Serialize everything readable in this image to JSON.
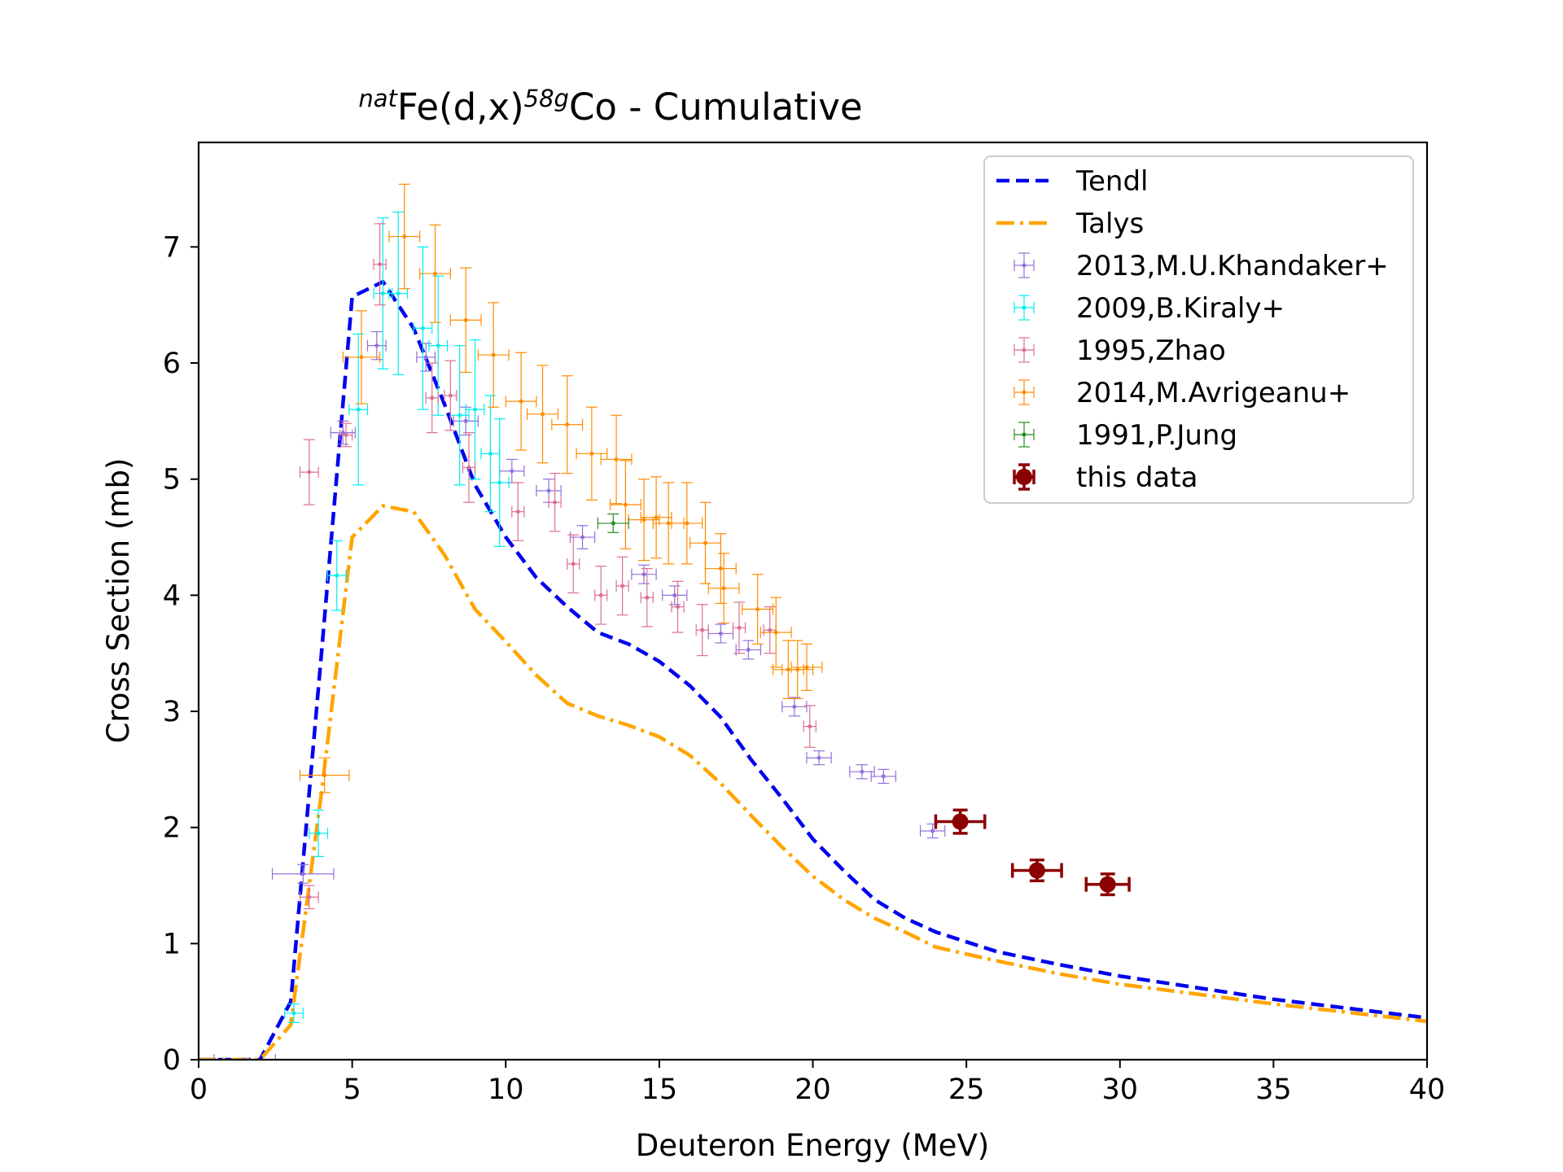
{
  "chart_data": {
    "type": "scatter",
    "title": {
      "prefix": "nat",
      "main1": "Fe(d,x)",
      "sup2": "58g",
      "main2": "Co - Cumulative"
    },
    "xlabel": "Deuteron Energy (MeV)",
    "ylabel": "Cross Section (mb)",
    "xlim": [
      0,
      40
    ],
    "ylim": [
      0,
      7.9
    ],
    "xticks": [
      "0",
      "5",
      "10",
      "15",
      "20",
      "25",
      "30",
      "35",
      "40"
    ],
    "yticks": [
      "0",
      "1",
      "2",
      "3",
      "4",
      "5",
      "6",
      "7"
    ],
    "legend_position": "top-right",
    "lines": [
      {
        "name": "Tendl",
        "color": "#0000ee",
        "style": "dashed",
        "x": [
          0,
          2,
          3,
          4,
          5,
          6,
          7,
          8,
          9,
          10,
          11,
          12,
          13,
          14,
          15,
          16,
          17,
          18,
          19,
          20,
          21,
          22,
          23,
          24,
          26,
          28,
          30,
          35,
          40
        ],
        "y": [
          0,
          0,
          0.5,
          3.5,
          6.57,
          6.7,
          6.3,
          5.65,
          4.95,
          4.5,
          4.15,
          3.9,
          3.68,
          3.58,
          3.43,
          3.22,
          2.95,
          2.58,
          2.25,
          1.9,
          1.63,
          1.38,
          1.22,
          1.1,
          0.93,
          0.82,
          0.72,
          0.52,
          0.36
        ]
      },
      {
        "name": "Talys",
        "color": "#ffa500",
        "style": "dashdot",
        "x": [
          0,
          2,
          3,
          4,
          5,
          6,
          7,
          8,
          9,
          10,
          11,
          12,
          13,
          14,
          15,
          16,
          17,
          18,
          19,
          20,
          21,
          22,
          23,
          24,
          26,
          28,
          30,
          35,
          40
        ],
        "y": [
          0,
          0,
          0.3,
          2.3,
          4.5,
          4.77,
          4.72,
          4.35,
          3.88,
          3.6,
          3.31,
          3.07,
          2.96,
          2.88,
          2.78,
          2.62,
          2.38,
          2.1,
          1.83,
          1.58,
          1.38,
          1.22,
          1.1,
          0.97,
          0.85,
          0.74,
          0.65,
          0.48,
          0.33
        ]
      }
    ],
    "series": [
      {
        "name": "2013,M.U.Khandaker+",
        "color": "#9370db",
        "points": [
          [
            1.5,
            0,
            1.0,
            0.0
          ],
          [
            3.4,
            1.6,
            1.0,
            0.08
          ],
          [
            4.7,
            5.4,
            0.4,
            0.1
          ],
          [
            5.8,
            6.15,
            0.3,
            0.12
          ],
          [
            7.4,
            6.05,
            0.3,
            0.12
          ],
          [
            8.7,
            5.5,
            0.4,
            0.12
          ],
          [
            10.2,
            5.07,
            0.4,
            0.1
          ],
          [
            11.4,
            4.9,
            0.4,
            0.1
          ],
          [
            12.5,
            4.5,
            0.4,
            0.1
          ],
          [
            14.5,
            4.18,
            0.4,
            0.08
          ],
          [
            15.5,
            4.0,
            0.4,
            0.08
          ],
          [
            17.0,
            3.67,
            0.4,
            0.08
          ],
          [
            17.9,
            3.53,
            0.4,
            0.08
          ],
          [
            19.4,
            3.04,
            0.4,
            0.08
          ],
          [
            20.2,
            2.6,
            0.4,
            0.06
          ],
          [
            21.6,
            2.48,
            0.4,
            0.06
          ],
          [
            22.3,
            2.44,
            0.4,
            0.06
          ],
          [
            23.9,
            1.97,
            0.4,
            0.06
          ]
        ]
      },
      {
        "name": "2009,B.Kiraly+",
        "color": "#00eeee",
        "points": [
          [
            3.1,
            0.4,
            0.3,
            0.08
          ],
          [
            3.9,
            1.95,
            0.3,
            0.2
          ],
          [
            4.5,
            4.17,
            0.3,
            0.3
          ],
          [
            5.2,
            5.6,
            0.3,
            0.65
          ],
          [
            6.0,
            6.6,
            0.3,
            0.65
          ],
          [
            6.5,
            6.6,
            0.3,
            0.7
          ],
          [
            7.3,
            6.3,
            0.3,
            0.7
          ],
          [
            7.8,
            6.15,
            0.3,
            0.6
          ],
          [
            8.5,
            5.55,
            0.3,
            0.6
          ],
          [
            9.0,
            5.6,
            0.3,
            0.6
          ],
          [
            9.5,
            5.22,
            0.3,
            0.5
          ],
          [
            9.8,
            4.97,
            0.3,
            0.55
          ]
        ]
      },
      {
        "name": "1995,Zhao",
        "color": "#db7093",
        "points": [
          [
            3.6,
            5.06,
            0.3,
            0.28
          ],
          [
            3.6,
            1.4,
            0.3,
            0.1
          ],
          [
            4.8,
            5.38,
            0.2,
            0.1
          ],
          [
            5.9,
            6.85,
            0.2,
            0.35
          ],
          [
            7.6,
            5.7,
            0.2,
            0.3
          ],
          [
            8.2,
            5.72,
            0.2,
            0.3
          ],
          [
            8.8,
            5.1,
            0.2,
            0.3
          ],
          [
            10.4,
            4.72,
            0.2,
            0.25
          ],
          [
            11.6,
            4.8,
            0.2,
            0.25
          ],
          [
            12.2,
            4.27,
            0.2,
            0.25
          ],
          [
            13.1,
            4.0,
            0.2,
            0.25
          ],
          [
            13.8,
            4.08,
            0.2,
            0.25
          ],
          [
            14.6,
            3.98,
            0.2,
            0.25
          ],
          [
            15.6,
            3.9,
            0.2,
            0.22
          ],
          [
            16.4,
            3.7,
            0.2,
            0.22
          ],
          [
            17.6,
            3.72,
            0.2,
            0.22
          ],
          [
            18.6,
            3.7,
            0.2,
            0.2
          ],
          [
            19.9,
            2.87,
            0.2,
            0.18
          ]
        ]
      },
      {
        "name": "2014,M.Avrigeanu+",
        "color": "#ff8c00",
        "points": [
          [
            4.1,
            2.45,
            0.8,
            0.15
          ],
          [
            5.3,
            6.05,
            0.6,
            0.4
          ],
          [
            6.7,
            7.09,
            0.5,
            0.45
          ],
          [
            7.7,
            6.77,
            0.5,
            0.42
          ],
          [
            8.7,
            6.37,
            0.5,
            0.45
          ],
          [
            9.6,
            6.07,
            0.5,
            0.45
          ],
          [
            10.5,
            5.67,
            0.5,
            0.42
          ],
          [
            11.2,
            5.56,
            0.5,
            0.42
          ],
          [
            12.0,
            5.47,
            0.5,
            0.42
          ],
          [
            12.8,
            5.22,
            0.5,
            0.4
          ],
          [
            13.6,
            5.17,
            0.5,
            0.38
          ],
          [
            13.9,
            4.78,
            0.5,
            0.38
          ],
          [
            14.5,
            4.65,
            0.5,
            0.35
          ],
          [
            14.9,
            4.67,
            0.5,
            0.35
          ],
          [
            15.3,
            4.62,
            0.5,
            0.35
          ],
          [
            15.9,
            4.62,
            0.5,
            0.35
          ],
          [
            16.5,
            4.45,
            0.5,
            0.35
          ],
          [
            17.0,
            4.23,
            0.5,
            0.3
          ],
          [
            17.1,
            4.06,
            0.5,
            0.3
          ],
          [
            18.2,
            3.88,
            0.5,
            0.3
          ],
          [
            18.8,
            3.68,
            0.5,
            0.3
          ],
          [
            19.2,
            3.36,
            0.5,
            0.25
          ],
          [
            19.5,
            3.36,
            0.5,
            0.25
          ],
          [
            19.8,
            3.38,
            0.5,
            0.2
          ]
        ]
      },
      {
        "name": "1991,P.Jung",
        "color": "#228b22",
        "points": [
          [
            13.5,
            4.62,
            0.5,
            0.08
          ]
        ]
      },
      {
        "name": "this data",
        "color": "#8b0000",
        "bold": true,
        "points": [
          [
            24.8,
            2.05,
            0.8,
            0.1
          ],
          [
            27.3,
            1.63,
            0.8,
            0.09
          ],
          [
            29.6,
            1.51,
            0.7,
            0.09
          ]
        ]
      }
    ]
  }
}
